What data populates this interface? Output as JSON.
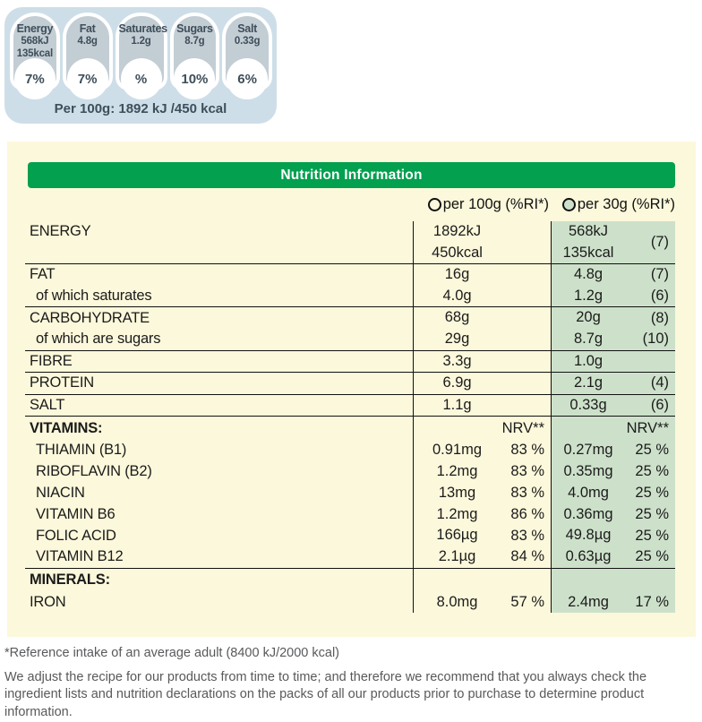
{
  "summary_panel": {
    "badges": [
      {
        "label": "Energy",
        "values": [
          "568kJ",
          "135kcal"
        ],
        "pct": "7%"
      },
      {
        "label": "Fat",
        "values": [
          "4.8g"
        ],
        "pct": "7%"
      },
      {
        "label": "Saturates",
        "values": [
          "1.2g"
        ],
        "pct": "%"
      },
      {
        "label": "Sugars",
        "values": [
          "8.7g"
        ],
        "pct": "10%"
      },
      {
        "label": "Salt",
        "values": [
          "0.33g"
        ],
        "pct": "6%"
      }
    ],
    "per_100g_note": "Per 100g: 1892 kJ /450 kcal"
  },
  "table": {
    "title": "Nutrition Information",
    "columns": [
      {
        "label": "per 100g (%RI*)"
      },
      {
        "label": "per 30g (%RI*)"
      }
    ],
    "rows": [
      {
        "label": "ENERGY",
        "v100": [
          "1892kJ",
          "450kcal"
        ],
        "p100": "",
        "v30": [
          "568kJ",
          "135kcal"
        ],
        "p30": "(7)",
        "line": true
      },
      {
        "label": "FAT",
        "v100": [
          "16g"
        ],
        "p100": "",
        "v30": [
          "4.8g"
        ],
        "p30": "(7)",
        "line": false
      },
      {
        "label": "of which saturates",
        "indent": true,
        "v100": [
          "4.0g"
        ],
        "p100": "",
        "v30": [
          "1.2g"
        ],
        "p30": "(6)",
        "line": true
      },
      {
        "label": "CARBOHYDRATE",
        "v100": [
          "68g"
        ],
        "p100": "",
        "v30": [
          "20g"
        ],
        "p30": "(8)",
        "line": false
      },
      {
        "label": "of which are sugars",
        "indent": true,
        "v100": [
          "29g"
        ],
        "p100": "",
        "v30": [
          "8.7g"
        ],
        "p30": "(10)",
        "line": true
      },
      {
        "label": "FIBRE",
        "v100": [
          "3.3g"
        ],
        "p100": "",
        "v30": [
          "1.0g"
        ],
        "p30": "",
        "line": true
      },
      {
        "label": "PROTEIN",
        "v100": [
          "6.9g"
        ],
        "p100": "",
        "v30": [
          "2.1g"
        ],
        "p30": "(4)",
        "line": true
      },
      {
        "label": "SALT",
        "v100": [
          "1.1g"
        ],
        "p100": "",
        "v30": [
          "0.33g"
        ],
        "p30": "(6)",
        "line": true
      },
      {
        "label": "VITAMINS:",
        "v100": [],
        "p100": "NRV**",
        "v30": [],
        "p30": "NRV**",
        "line": false
      },
      {
        "label": "THIAMIN (B1)",
        "indent": true,
        "v100": [
          "0.91mg"
        ],
        "p100": "83 %",
        "v30": [
          "0.27mg"
        ],
        "p30": "25 %",
        "line": false
      },
      {
        "label": "RIBOFLAVIN (B2)",
        "indent": true,
        "v100": [
          "1.2mg"
        ],
        "p100": "83 %",
        "v30": [
          "0.35mg"
        ],
        "p30": "25 %",
        "line": false
      },
      {
        "label": "NIACIN",
        "indent": true,
        "v100": [
          "13mg"
        ],
        "p100": "83 %",
        "v30": [
          "4.0mg"
        ],
        "p30": "25 %",
        "line": false
      },
      {
        "label": "VITAMIN B6",
        "indent": true,
        "v100": [
          "1.2mg"
        ],
        "p100": "86 %",
        "v30": [
          "0.36mg"
        ],
        "p30": "25 %",
        "line": false
      },
      {
        "label": "FOLIC ACID",
        "indent": true,
        "v100": [
          "166µg"
        ],
        "p100": "83 %",
        "v30": [
          "49.8µg"
        ],
        "p30": "25 %",
        "line": false
      },
      {
        "label": "VITAMIN B12",
        "indent": true,
        "v100": [
          "2.1µg"
        ],
        "p100": "84 %",
        "v30": [
          "0.63µg"
        ],
        "p30": "25 %",
        "line": true
      },
      {
        "label": "MINERALS:",
        "v100": [],
        "p100": "",
        "v30": [],
        "p30": "",
        "line": false
      },
      {
        "label": "IRON",
        "v100": [
          "8.0mg"
        ],
        "p100": "57 %",
        "v30": [
          "2.4mg"
        ],
        "p30": "17 %",
        "line": false
      }
    ]
  },
  "footnotes": {
    "reference": "*Reference intake of an average adult (8400 kJ/2000 kcal)",
    "disclaimer": "We adjust the recipe for our products from time to time; and therefore we recommend that you always check the ingredient lists and nutrition declarations on the packs of all our products prior to purchase to determine product information."
  },
  "colors": {
    "panel_blue": "#cddee8",
    "badge_gray": "#c3cdd4",
    "badge_text": "#3e4e5a",
    "cream": "#fcf8db",
    "header_green": "#02a04f",
    "column_green": "#cde1ca",
    "table_text": "#1b1b1b",
    "footnote_gray": "#58595b"
  }
}
